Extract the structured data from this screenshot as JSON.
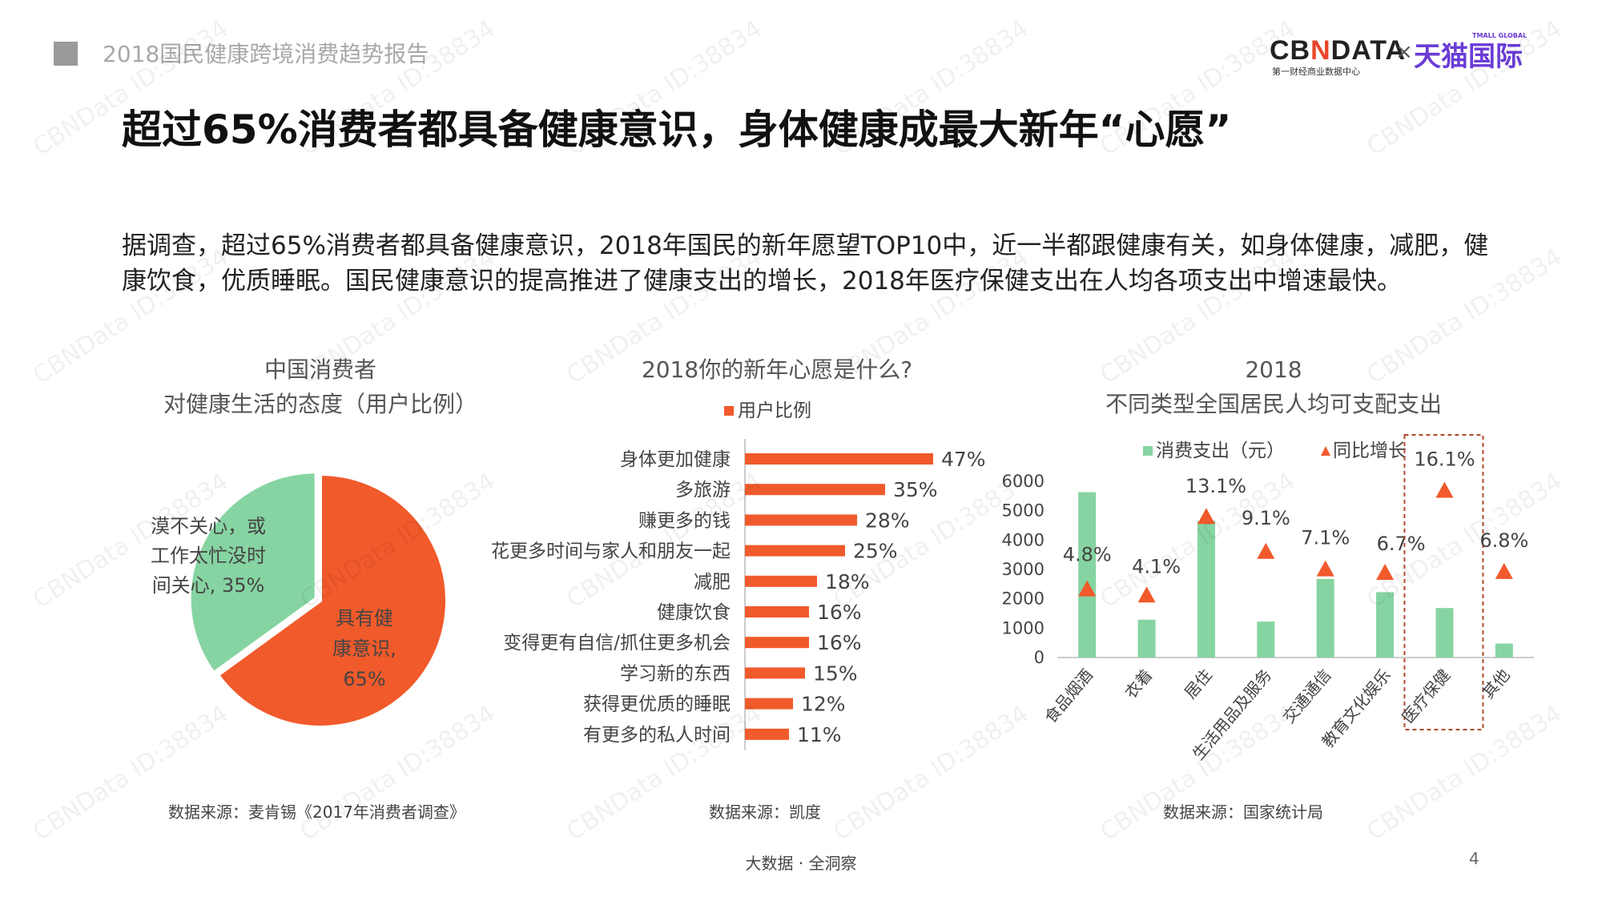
{
  "header": {
    "report_title": "2018国民健康跨境消费趋势报告",
    "logo": {
      "cbn_prefix": "CB",
      "cbn_mark": "N",
      "cbn_suffix": "DATA",
      "cbn_sub": "第一财经商业数据中心",
      "times": "×",
      "tmall": "天猫国际",
      "tmall_sub": "TMALL GLOBAL"
    }
  },
  "main_title": "超过65%消费者都具备健康意识，身体健康成最大新年“心愿”",
  "intro_text": "据调查，超过65%消费者都具备健康意识，2018年国民的新年愿望TOP10中，近一半都跟健康有关，如身体健康，减肥，健康饮食，优质睡眠。国民健康意识的提高推进了健康支出的增长，2018年医疗保健支出在人均各项支出中增速最快。",
  "colors": {
    "orange": "#f15a2b",
    "green": "#86d4a2",
    "gray_text": "#555555"
  },
  "chart_data": [
    {
      "type": "pie",
      "title_line1": "中国消费者",
      "title_line2": "对健康生活的态度（用户比例）",
      "slices": [
        {
          "label_line1": "具有健",
          "label_line2": "康意识,",
          "label_line3": "65%",
          "value": 65,
          "color": "#f15a2b"
        },
        {
          "label_line1": "漠不关心，或",
          "label_line2": "工作太忙没时",
          "label_line3": "间关心, 35%",
          "value": 35,
          "color": "#86d4a2"
        }
      ],
      "source": "数据来源：麦肯锡《2017年消费者调查》"
    },
    {
      "type": "bar",
      "orientation": "horizontal",
      "title": "2018你的新年心愿是什么?",
      "legend": "用户比例",
      "categories": [
        "身体更加健康",
        "多旅游",
        "赚更多的钱",
        "花更多时间与家人和朋友一起",
        "减肥",
        "健康饮食",
        "变得更有自信/抓住更多机会",
        "学习新的东西",
        "获得更优质的睡眠",
        "有更多的私人时间"
      ],
      "values": [
        47,
        35,
        28,
        25,
        18,
        16,
        16,
        15,
        12,
        11
      ],
      "value_labels": [
        "47%",
        "35%",
        "28%",
        "25%",
        "18%",
        "16%",
        "16%",
        "15%",
        "12%",
        "11%"
      ],
      "xlim": [
        0,
        50
      ],
      "color": "#f15a2b",
      "source": "数据来源：凯度"
    },
    {
      "type": "bar",
      "title_line1": "2018",
      "title_line2": "不同类型全国居民人均可支配支出",
      "legend_bar": "消费支出（元）",
      "legend_marker": "同比增长",
      "categories": [
        "食品烟酒",
        "衣着",
        "居住",
        "生活用品及服务",
        "交通通信",
        "教育文化娱乐",
        "医疗保健",
        "其他"
      ],
      "series": [
        {
          "name": "消费支出（元）",
          "values": [
            5631,
            1289,
            4647,
            1223,
            2675,
            2226,
            1685,
            477
          ],
          "color": "#86d4a2"
        },
        {
          "name": "同比增长",
          "values": [
            4.8,
            4.1,
            13.1,
            9.1,
            7.1,
            6.7,
            16.1,
            6.8
          ],
          "color": "#f15a2b",
          "marker": "triangle"
        }
      ],
      "growth_labels": [
        "4.8%",
        "4.1%",
        "13.1%",
        "9.1%",
        "7.1%",
        "6.7%",
        "16.1%",
        "6.8%"
      ],
      "y_ticks": [
        "0",
        "1000",
        "2000",
        "3000",
        "4000",
        "5000",
        "6000"
      ],
      "ylim": [
        0,
        6000
      ],
      "highlight_category": "医疗保健",
      "source": "数据来源：国家统计局"
    }
  ],
  "footer": {
    "text": "大数据 · 全洞察",
    "page": "4"
  },
  "watermark": "CBNData ID:38834"
}
